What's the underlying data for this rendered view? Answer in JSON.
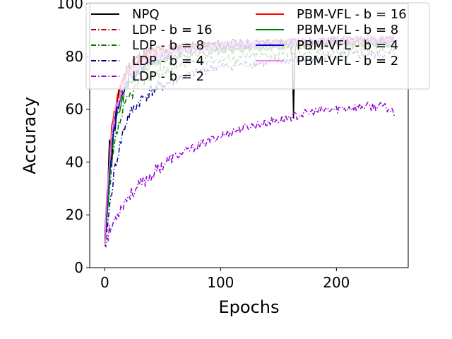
{
  "chart_data": {
    "type": "line",
    "title": "",
    "xlabel": "Epochs",
    "ylabel": "Accuracy",
    "xlim": [
      -13,
      262
    ],
    "ylim": [
      0,
      100
    ],
    "xticks": [
      0,
      100,
      200
    ],
    "yticks": [
      0,
      20,
      40,
      60,
      80,
      100
    ],
    "grid": false,
    "legend_position": "top",
    "legend_columns": 2,
    "series": [
      {
        "name": "NPQ",
        "color": "#000000",
        "style": "solid",
        "seed": 11,
        "x": [
          0,
          2,
          4,
          6,
          8,
          10,
          14,
          18,
          22,
          28,
          35,
          45,
          55,
          70,
          85,
          100,
          130,
          160,
          162,
          163,
          164,
          165,
          180,
          200,
          230,
          250
        ],
        "y": [
          10,
          25,
          50,
          40,
          55,
          60,
          70,
          74,
          77,
          79,
          81,
          82,
          83,
          84,
          84,
          85,
          85,
          85,
          80,
          58,
          80,
          85,
          85,
          86,
          86,
          86
        ]
      },
      {
        "name": "LDP - b = 16",
        "color": "#b00000",
        "style": "dashdot",
        "seed": 23,
        "x": [
          0,
          3,
          6,
          10,
          15,
          20,
          30,
          40,
          60,
          80,
          100,
          150,
          200,
          250
        ],
        "y": [
          11,
          30,
          48,
          60,
          68,
          73,
          77,
          79,
          81,
          82,
          83,
          84,
          85,
          85
        ]
      },
      {
        "name": "LDP - b = 8",
        "color": "#007000",
        "style": "dashdot",
        "seed": 37,
        "x": [
          0,
          3,
          6,
          10,
          15,
          20,
          30,
          40,
          60,
          80,
          100,
          150,
          200,
          250
        ],
        "y": [
          11,
          22,
          38,
          50,
          58,
          64,
          70,
          73,
          76,
          78,
          79,
          81,
          82,
          83
        ]
      },
      {
        "name": "LDP - b = 4",
        "color": "#00008b",
        "style": "dashdot",
        "seed": 41,
        "x": [
          0,
          3,
          6,
          10,
          15,
          20,
          30,
          40,
          60,
          80,
          100,
          150,
          200,
          250
        ],
        "y": [
          10,
          18,
          30,
          40,
          50,
          57,
          63,
          67,
          71,
          74,
          76,
          78,
          80,
          81
        ]
      },
      {
        "name": "LDP - b = 2",
        "color": "#9400d3",
        "style": "dashdot",
        "seed": 53,
        "x": [
          0,
          5,
          10,
          20,
          30,
          40,
          50,
          60,
          70,
          80,
          100,
          120,
          150,
          180,
          200,
          220,
          240,
          250
        ],
        "y": [
          10,
          14,
          20,
          27,
          31,
          35,
          39,
          42,
          44,
          46,
          50,
          53,
          56,
          59,
          60,
          61,
          61,
          59
        ]
      },
      {
        "name": "PBM-VFL - b = 16",
        "color": "#ff0000",
        "style": "solid",
        "seed": 67,
        "x": [
          0,
          3,
          6,
          10,
          15,
          20,
          30,
          40,
          60,
          80,
          100,
          150,
          200,
          250
        ],
        "y": [
          11,
          35,
          52,
          63,
          71,
          75,
          79,
          81,
          83,
          84,
          84,
          85,
          86,
          86
        ]
      },
      {
        "name": "PBM-VFL - b = 8",
        "color": "#008000",
        "style": "solid",
        "seed": 71,
        "x": [
          0,
          3,
          6,
          10,
          15,
          20,
          30,
          40,
          60,
          80,
          100,
          150,
          200,
          250
        ],
        "y": [
          11,
          28,
          45,
          56,
          64,
          69,
          74,
          77,
          80,
          81,
          82,
          84,
          85,
          85
        ]
      },
      {
        "name": "PBM-VFL - b = 4",
        "color": "#0000cd",
        "style": "solid",
        "seed": 83,
        "x": [
          0,
          3,
          6,
          10,
          15,
          20,
          30,
          40,
          60,
          80,
          100,
          150,
          200,
          250
        ],
        "y": [
          11,
          30,
          47,
          58,
          66,
          71,
          76,
          79,
          81,
          83,
          84,
          85,
          86,
          86
        ]
      },
      {
        "name": "PBM-VFL - b = 2",
        "color": "#ee82ee",
        "style": "solid",
        "seed": 97,
        "x": [
          0,
          3,
          6,
          10,
          15,
          20,
          30,
          40,
          60,
          80,
          100,
          150,
          200,
          250
        ],
        "y": [
          11,
          33,
          50,
          61,
          69,
          74,
          78,
          80,
          82,
          83,
          84,
          85,
          86,
          87
        ]
      }
    ]
  }
}
